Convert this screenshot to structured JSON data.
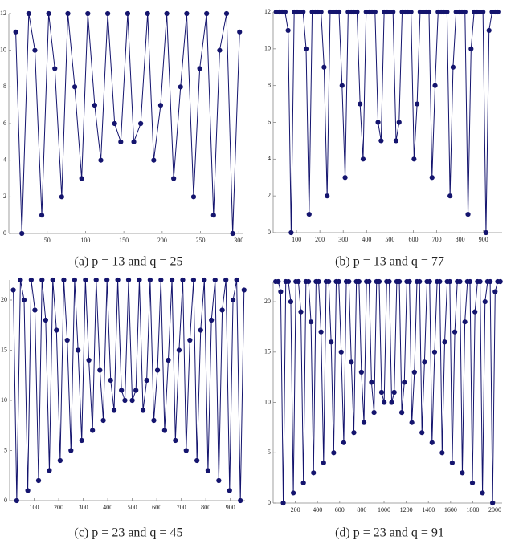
{
  "chart_data": [
    {
      "type": "line",
      "caption": "(a) p = 13 and q = 25",
      "color": "#14146e",
      "x": [
        9,
        17,
        26,
        34,
        43,
        52,
        60,
        69,
        77,
        86,
        95,
        103,
        112,
        120,
        129,
        138,
        146,
        155,
        163,
        172,
        181,
        189,
        198,
        206,
        215,
        224,
        232,
        241,
        249,
        258,
        267,
        275,
        284,
        292,
        301
      ],
      "values": [
        11,
        0,
        12,
        10,
        1,
        12,
        9,
        2,
        12,
        8,
        3,
        12,
        7,
        4,
        12,
        6,
        5,
        12,
        5,
        6,
        12,
        4,
        7,
        12,
        3,
        8,
        12,
        2,
        9,
        12,
        1,
        10,
        12,
        0,
        11
      ],
      "xlim": [
        0,
        306
      ],
      "ylim": [
        0,
        12
      ],
      "xticks": [
        50,
        100,
        150,
        200,
        250,
        300
      ],
      "yticks": [
        0,
        2,
        4,
        6,
        8,
        10,
        12
      ]
    },
    {
      "type": "line",
      "caption": "(b) p = 13 and q = 77",
      "color": "#14146e",
      "x": [
        13,
        26,
        38,
        51,
        64,
        77,
        90,
        103,
        115,
        128,
        141,
        154,
        167,
        180,
        192,
        205,
        218,
        231,
        244,
        257,
        269,
        282,
        295,
        308,
        321,
        334,
        346,
        359,
        372,
        385,
        398,
        411,
        423,
        436,
        449,
        462,
        475,
        488,
        500,
        513,
        526,
        539,
        552,
        565,
        577,
        590,
        603,
        616,
        629,
        642,
        654,
        667,
        680,
        693,
        706,
        719,
        731,
        744,
        757,
        770,
        783,
        796,
        808,
        821,
        834,
        847,
        860,
        873,
        885,
        898,
        911,
        924,
        937,
        950,
        962
      ],
      "values": [
        12,
        12,
        12,
        12,
        11,
        0,
        12,
        12,
        12,
        12,
        10,
        1,
        12,
        12,
        12,
        12,
        9,
        2,
        12,
        12,
        12,
        12,
        8,
        3,
        12,
        12,
        12,
        12,
        7,
        4,
        12,
        12,
        12,
        12,
        6,
        5,
        12,
        12,
        12,
        12,
        5,
        6,
        12,
        12,
        12,
        12,
        4,
        7,
        12,
        12,
        12,
        12,
        3,
        8,
        12,
        12,
        12,
        12,
        2,
        9,
        12,
        12,
        12,
        12,
        1,
        10,
        12,
        12,
        12,
        12,
        0,
        11,
        12,
        12,
        12
      ],
      "xlim": [
        0,
        980
      ],
      "ylim": [
        0,
        12
      ],
      "xticks": [
        100,
        200,
        300,
        400,
        500,
        600,
        700,
        800,
        900
      ],
      "yticks": [
        0,
        2,
        4,
        6,
        8,
        10,
        12
      ]
    },
    {
      "type": "line",
      "caption": "(c) p = 23 and q = 45",
      "color": "#14146e",
      "x": [
        15,
        29,
        44,
        59,
        74,
        88,
        103,
        118,
        132,
        147,
        162,
        176,
        191,
        206,
        221,
        235,
        250,
        265,
        279,
        294,
        309,
        323,
        338,
        353,
        368,
        382,
        397,
        412,
        426,
        441,
        456,
        470,
        485,
        500,
        515,
        529,
        544,
        559,
        573,
        588,
        603,
        617,
        632,
        647,
        662,
        676,
        691,
        706,
        720,
        735,
        750,
        764,
        779,
        794,
        809,
        823,
        838,
        853,
        867,
        882,
        897,
        911,
        926,
        941,
        956
      ],
      "values": [
        21,
        0,
        22,
        20,
        1,
        22,
        19,
        2,
        22,
        18,
        3,
        22,
        17,
        4,
        22,
        16,
        5,
        22,
        15,
        6,
        22,
        14,
        7,
        22,
        13,
        8,
        22,
        12,
        9,
        22,
        11,
        10,
        22,
        10,
        11,
        22,
        9,
        12,
        22,
        8,
        13,
        22,
        7,
        14,
        22,
        6,
        15,
        22,
        5,
        16,
        22,
        4,
        17,
        22,
        3,
        18,
        22,
        2,
        19,
        22,
        1,
        20,
        22,
        0,
        21
      ],
      "xlim": [
        0,
        960
      ],
      "ylim": [
        0,
        22
      ],
      "xticks": [
        100,
        200,
        300,
        400,
        500,
        600,
        700,
        800,
        900
      ],
      "yticks": [
        0,
        5,
        10,
        15,
        20
      ]
    },
    {
      "type": "line",
      "caption": "(d) p = 23 and q = 91",
      "color": "#14146e",
      "x": [
        23,
        46,
        68,
        91,
        114,
        137,
        159,
        182,
        205,
        228,
        250,
        273,
        296,
        319,
        341,
        364,
        387,
        410,
        432,
        455,
        478,
        501,
        523,
        546,
        569,
        592,
        614,
        637,
        660,
        683,
        705,
        728,
        751,
        774,
        796,
        819,
        842,
        865,
        887,
        910,
        933,
        956,
        978,
        1001,
        1024,
        1047,
        1069,
        1092,
        1115,
        1138,
        1160,
        1183,
        1206,
        1229,
        1251,
        1274,
        1297,
        1320,
        1342,
        1365,
        1388,
        1411,
        1433,
        1456,
        1479,
        1502,
        1524,
        1547,
        1570,
        1593,
        1615,
        1638,
        1661,
        1684,
        1706,
        1729,
        1752,
        1775,
        1797,
        1820,
        1843,
        1866,
        1888,
        1911,
        1934,
        1957,
        1979,
        2002,
        2025,
        2048
      ],
      "values": [
        22,
        22,
        21,
        0,
        22,
        22,
        20,
        1,
        22,
        22,
        19,
        2,
        22,
        22,
        18,
        3,
        22,
        22,
        17,
        4,
        22,
        22,
        16,
        5,
        22,
        22,
        15,
        6,
        22,
        22,
        14,
        7,
        22,
        22,
        13,
        8,
        22,
        22,
        12,
        9,
        22,
        22,
        11,
        10,
        22,
        22,
        10,
        11,
        22,
        22,
        9,
        12,
        22,
        22,
        8,
        13,
        22,
        22,
        7,
        14,
        22,
        22,
        6,
        15,
        22,
        22,
        5,
        16,
        22,
        22,
        4,
        17,
        22,
        22,
        3,
        18,
        22,
        22,
        2,
        19,
        22,
        22,
        1,
        20,
        22,
        22,
        0,
        21,
        22,
        22
      ],
      "xlim": [
        0,
        2065
      ],
      "ylim": [
        0,
        22
      ],
      "xticks": [
        200,
        400,
        600,
        800,
        1000,
        1200,
        1400,
        1600,
        1800,
        2000
      ],
      "yticks": [
        0,
        5,
        10,
        15,
        20
      ]
    }
  ]
}
